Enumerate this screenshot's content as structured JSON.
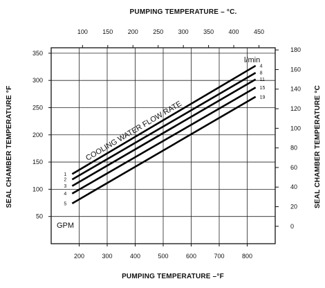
{
  "chart_data": {
    "type": "line",
    "title": "",
    "top_axis": {
      "label": "PUMPING TEMPERATURE – °C.",
      "ticks": [
        100,
        150,
        200,
        250,
        300,
        350,
        400,
        450
      ]
    },
    "bottom_axis": {
      "label": "PUMPING TEMPERATURE –°F",
      "ticks": [
        200,
        300,
        400,
        500,
        600,
        700,
        800
      ],
      "xlim": [
        100,
        900
      ]
    },
    "left_axis": {
      "label": "SEAL CHAMBER TEMPERATURE °F",
      "ticks": [
        50,
        100,
        150,
        200,
        250,
        300,
        350
      ],
      "ylim": [
        0,
        360
      ]
    },
    "right_axis": {
      "label": "SEAL CHAMBER TEMPERATURE °C",
      "ticks": [
        0,
        20,
        40,
        60,
        80,
        100,
        120,
        140,
        160,
        180
      ]
    },
    "annotation": "COOLING WATER FLOW RATE",
    "unit_left": "GPM",
    "unit_right": "l/min",
    "grid": true,
    "series": [
      {
        "name": "1",
        "right_label": "4",
        "x": [
          175,
          830
        ],
        "y": [
          128,
          327
        ]
      },
      {
        "name": "2",
        "right_label": "8",
        "x": [
          175,
          830
        ],
        "y": [
          118,
          314
        ]
      },
      {
        "name": "3",
        "right_label": "11",
        "x": [
          175,
          830
        ],
        "y": [
          106,
          302
        ]
      },
      {
        "name": "4",
        "right_label": "15",
        "x": [
          175,
          830
        ],
        "y": [
          92,
          287
        ]
      },
      {
        "name": "5",
        "right_label": "19",
        "x": [
          175,
          830
        ],
        "y": [
          74,
          270
        ]
      }
    ]
  }
}
